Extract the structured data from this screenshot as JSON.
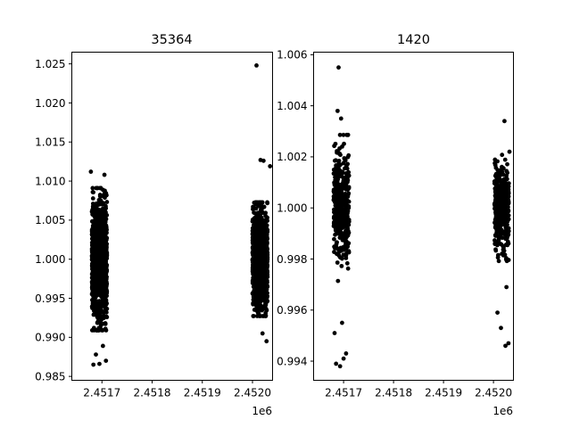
{
  "figure": {
    "background": "#ffffff",
    "marker_color": "#000000"
  },
  "chart_data": [
    {
      "type": "scatter",
      "title": "35364",
      "xlabel": "",
      "ylabel": "",
      "x_offset_label": "1e6",
      "xlim": [
        2.45164,
        2.45204
      ],
      "ylim": [
        0.9845,
        1.0265
      ],
      "x_ticks": [
        2.4517,
        2.4518,
        2.4519,
        2.452
      ],
      "x_tick_labels": [
        "2.4517",
        "2.4518",
        "2.4519",
        "2.4520"
      ],
      "y_ticks": [
        0.985,
        0.99,
        0.995,
        1.0,
        1.005,
        1.01,
        1.015,
        1.02,
        1.025
      ],
      "y_tick_labels": [
        "0.985",
        "0.990",
        "0.995",
        "1.000",
        "1.005",
        "1.010",
        "1.015",
        "1.020",
        "1.025"
      ],
      "grid": false,
      "legend": "none",
      "clusters": [
        {
          "x_range": [
            2.45168,
            2.45171
          ],
          "y_center": 1.0,
          "y_spread": 0.0035,
          "approx_points": 1400
        },
        {
          "x_range": [
            2.452,
            2.45203
          ],
          "y_center": 1.0,
          "y_spread": 0.0028,
          "approx_points": 1400
        }
      ],
      "notable_points": [
        {
          "x": 2.452008,
          "y": 1.0248
        },
        {
          "x": 2.452016,
          "y": 1.0127
        },
        {
          "x": 2.452022,
          "y": 1.0126
        },
        {
          "x": 2.452035,
          "y": 1.0119
        },
        {
          "x": 2.45202,
          "y": 0.9905
        },
        {
          "x": 2.452028,
          "y": 0.9895
        },
        {
          "x": 2.451683,
          "y": 0.9865
        },
        {
          "x": 2.451695,
          "y": 0.9866
        },
        {
          "x": 2.451708,
          "y": 0.987
        },
        {
          "x": 2.451688,
          "y": 0.9878
        },
        {
          "x": 2.451702,
          "y": 0.9889
        },
        {
          "x": 2.451678,
          "y": 1.0112
        },
        {
          "x": 2.451705,
          "y": 1.0108
        }
      ]
    },
    {
      "type": "scatter",
      "title": "1420",
      "xlabel": "",
      "ylabel": "",
      "x_offset_label": "1e6",
      "xlim": [
        2.45164,
        2.45204
      ],
      "ylim": [
        0.99325,
        1.0061
      ],
      "x_ticks": [
        2.4517,
        2.4518,
        2.4519,
        2.452
      ],
      "x_tick_labels": [
        "2.4517",
        "2.4518",
        "2.4519",
        "2.4520"
      ],
      "y_ticks": [
        0.994,
        0.996,
        0.998,
        1.0,
        1.002,
        1.004,
        1.006
      ],
      "y_tick_labels": [
        "0.994",
        "0.996",
        "0.998",
        "1.000",
        "1.002",
        "1.004",
        "1.006"
      ],
      "grid": false,
      "legend": "none",
      "clusters": [
        {
          "x_range": [
            2.45168,
            2.451711
          ],
          "y_center": 1.0,
          "y_spread": 0.0011,
          "approx_points": 420
        },
        {
          "x_range": [
            2.452002,
            2.452031
          ],
          "y_center": 1.0,
          "y_spread": 0.0008,
          "approx_points": 420
        }
      ],
      "notable_points": [
        {
          "x": 2.45169,
          "y": 1.0055
        },
        {
          "x": 2.451688,
          "y": 1.0038
        },
        {
          "x": 2.451695,
          "y": 1.0035
        },
        {
          "x": 2.451685,
          "y": 0.9939
        },
        {
          "x": 2.451693,
          "y": 0.9938
        },
        {
          "x": 2.4517,
          "y": 0.9941
        },
        {
          "x": 2.451705,
          "y": 0.9943
        },
        {
          "x": 2.451682,
          "y": 0.9951
        },
        {
          "x": 2.451697,
          "y": 0.9955
        },
        {
          "x": 2.452022,
          "y": 1.0034
        },
        {
          "x": 2.452032,
          "y": 1.0022
        },
        {
          "x": 2.452015,
          "y": 0.9953
        },
        {
          "x": 2.45203,
          "y": 0.9947
        },
        {
          "x": 2.452024,
          "y": 0.9946
        },
        {
          "x": 2.452008,
          "y": 0.9959
        },
        {
          "x": 2.452026,
          "y": 0.9969
        }
      ]
    }
  ]
}
